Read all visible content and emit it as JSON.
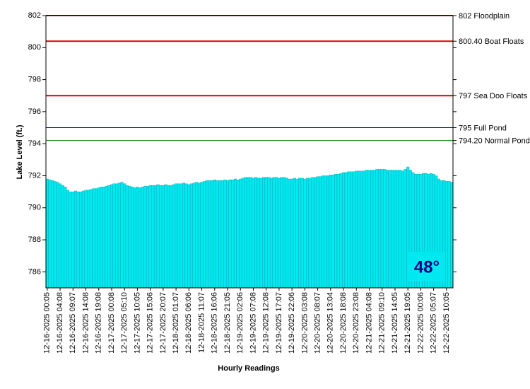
{
  "chart_data": {
    "type": "bar",
    "x_label": "Hourly Readings",
    "y_label": "Lake Level (ft.)",
    "temperature_badge": "48°",
    "color": "#00e8f0",
    "ylim": [
      785,
      802
    ],
    "yticks": [
      786,
      788,
      790,
      792,
      794,
      796,
      798,
      800,
      802
    ],
    "reference_lines": [
      {
        "value": 802,
        "label": "802 Floodplain",
        "color": "#e00000"
      },
      {
        "value": 800.4,
        "label": "800.40 Boat Floats",
        "color": "#e00000"
      },
      {
        "value": 797,
        "label": "797 Sea Doo Floats",
        "color": "#e00000"
      },
      {
        "value": 795,
        "label": "795 Full Pond",
        "color": "#000080"
      },
      {
        "value": 794.2,
        "label": "794.20 Normal Pond",
        "color": "#008000"
      }
    ],
    "categories": [
      "12-16-2025 00:05",
      null,
      null,
      null,
      null,
      "12-16-2025 04:08",
      null,
      null,
      null,
      null,
      "12-16-2025 09:07",
      null,
      null,
      null,
      null,
      "12-16-2025 14:08",
      null,
      null,
      null,
      null,
      "12-16-2025 19:08",
      null,
      null,
      null,
      null,
      "12-17-2025 00:08",
      null,
      null,
      null,
      null,
      "12-17-2025 05:10",
      null,
      null,
      null,
      null,
      "12-17-2025 10:05",
      null,
      null,
      null,
      null,
      "12-17-2025 15:06",
      null,
      null,
      null,
      null,
      "12-17-2025 20:07",
      null,
      null,
      null,
      null,
      "12-18-2025 01:07",
      null,
      null,
      null,
      null,
      "12-18-2025 06:06",
      null,
      null,
      null,
      null,
      "12-18-2025 11:07",
      null,
      null,
      null,
      null,
      "12-18-2025 16:06",
      null,
      null,
      null,
      null,
      "12-18-2025 21:05",
      null,
      null,
      null,
      null,
      "12-19-2025 02:06",
      null,
      null,
      null,
      null,
      "12-19-2025 07:08",
      null,
      null,
      null,
      null,
      "12-19-2025 12:08",
      null,
      null,
      null,
      null,
      "12-19-2025 17:07",
      null,
      null,
      null,
      null,
      "12-19-2025 22:06",
      null,
      null,
      null,
      null,
      "12-20-2025 03:08",
      null,
      null,
      null,
      null,
      "12-20-2025 08:07",
      null,
      null,
      null,
      null,
      "12-20-2025 13:04",
      null,
      null,
      null,
      null,
      "12-20-2025 18:08",
      null,
      null,
      null,
      null,
      "12-20-2025 23:08",
      null,
      null,
      null,
      null,
      "12-21-2025 04:08",
      null,
      null,
      null,
      null,
      "12-21-2025 09:10",
      null,
      null,
      null,
      null,
      "12-21-2025 14:05",
      null,
      null,
      null,
      null,
      "12-21-2025 19:05",
      null,
      null,
      null,
      null,
      "12-22-2025 00:06",
      null,
      null,
      null,
      null,
      "12-22-2025 05:07",
      null,
      null,
      null,
      null,
      "12-22-2025 10:05",
      null,
      null
    ],
    "values": [
      791.8,
      791.75,
      791.7,
      791.65,
      791.6,
      791.5,
      791.4,
      791.3,
      791.1,
      791.0,
      791.0,
      791.05,
      791.0,
      791.0,
      791.05,
      791.1,
      791.1,
      791.15,
      791.2,
      791.2,
      791.25,
      791.3,
      791.3,
      791.35,
      791.4,
      791.45,
      791.5,
      791.5,
      791.55,
      791.6,
      791.5,
      791.4,
      791.35,
      791.3,
      791.25,
      791.3,
      791.25,
      791.3,
      791.35,
      791.35,
      791.4,
      791.4,
      791.4,
      791.45,
      791.4,
      791.4,
      791.45,
      791.4,
      791.4,
      791.45,
      791.5,
      791.5,
      791.5,
      791.55,
      791.5,
      791.45,
      791.5,
      791.55,
      791.6,
      791.55,
      791.6,
      791.65,
      791.7,
      791.7,
      791.7,
      791.75,
      791.7,
      791.7,
      791.7,
      791.75,
      791.7,
      791.75,
      791.75,
      791.8,
      791.75,
      791.8,
      791.85,
      791.9,
      791.9,
      791.9,
      791.85,
      791.9,
      791.85,
      791.85,
      791.9,
      791.9,
      791.9,
      791.85,
      791.9,
      791.9,
      791.85,
      791.9,
      791.9,
      791.85,
      791.8,
      791.8,
      791.85,
      791.8,
      791.85,
      791.85,
      791.8,
      791.85,
      791.85,
      791.9,
      791.9,
      791.95,
      791.95,
      792.0,
      792.0,
      792.0,
      792.05,
      792.05,
      792.1,
      792.1,
      792.15,
      792.2,
      792.2,
      792.25,
      792.25,
      792.25,
      792.3,
      792.3,
      792.3,
      792.3,
      792.35,
      792.35,
      792.35,
      792.35,
      792.4,
      792.4,
      792.4,
      792.4,
      792.35,
      792.35,
      792.35,
      792.35,
      792.35,
      792.35,
      792.3,
      792.4,
      792.55,
      792.35,
      792.2,
      792.1,
      792.1,
      792.1,
      792.15,
      792.15,
      792.1,
      792.15,
      792.1,
      792.0,
      791.8,
      791.7,
      791.7,
      791.65,
      791.65,
      791.6
    ]
  }
}
